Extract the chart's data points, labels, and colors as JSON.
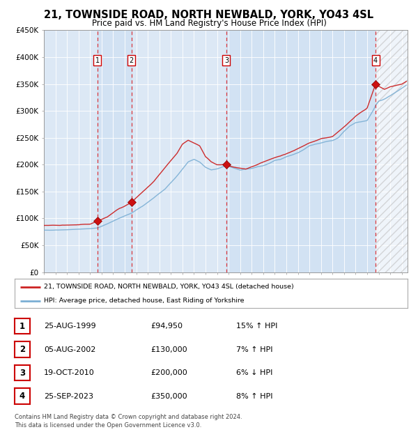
{
  "title": "21, TOWNSIDE ROAD, NORTH NEWBALD, YORK, YO43 4SL",
  "subtitle": "Price paid vs. HM Land Registry's House Price Index (HPI)",
  "plot_bg_color": "#dce8f5",
  "ylim": [
    0,
    450000
  ],
  "yticks": [
    0,
    50000,
    100000,
    150000,
    200000,
    250000,
    300000,
    350000,
    400000,
    450000
  ],
  "xstart": 1995.0,
  "xend": 2026.5,
  "sale_dates": [
    1999.646,
    2002.594,
    2010.804,
    2023.731
  ],
  "sale_prices": [
    94950,
    130000,
    200000,
    350000
  ],
  "sale_labels": [
    "1",
    "2",
    "3",
    "4"
  ],
  "sale_color": "#cc0000",
  "hpi_line_color": "#7bafd4",
  "price_line_color": "#cc2222",
  "legend_label_price": "21, TOWNSIDE ROAD, NORTH NEWBALD, YORK, YO43 4SL (detached house)",
  "legend_label_hpi": "HPI: Average price, detached house, East Riding of Yorkshire",
  "table_rows": [
    [
      "1",
      "25-AUG-1999",
      "£94,950",
      "15% ↑ HPI"
    ],
    [
      "2",
      "05-AUG-2002",
      "£130,000",
      "7% ↑ HPI"
    ],
    [
      "3",
      "19-OCT-2010",
      "£200,000",
      "6% ↓ HPI"
    ],
    [
      "4",
      "25-SEP-2023",
      "£350,000",
      "8% ↑ HPI"
    ]
  ],
  "footer": "Contains HM Land Registry data © Crown copyright and database right 2024.\nThis data is licensed under the Open Government Licence v3.0.",
  "hpi_key_x": [
    1995.0,
    1996.0,
    1997.0,
    1998.0,
    1999.0,
    1999.646,
    2000.5,
    2001.5,
    2002.594,
    2003.5,
    2004.5,
    2005.5,
    2006.5,
    2007.5,
    2008.0,
    2008.5,
    2009.0,
    2009.5,
    2010.0,
    2010.5,
    2010.804,
    2011.0,
    2011.5,
    2012.0,
    2012.5,
    2013.0,
    2013.5,
    2014.0,
    2014.5,
    2015.0,
    2015.5,
    2016.0,
    2016.5,
    2017.0,
    2017.5,
    2018.0,
    2018.5,
    2019.0,
    2019.5,
    2020.0,
    2020.5,
    2021.0,
    2021.5,
    2022.0,
    2022.5,
    2023.0,
    2023.5,
    2023.731,
    2024.0,
    2024.5,
    2025.0,
    2025.5,
    2026.0,
    2026.4
  ],
  "hpi_key_y": [
    78000,
    78500,
    79000,
    80000,
    81000,
    82000,
    90000,
    100000,
    110000,
    122000,
    138000,
    155000,
    178000,
    205000,
    210000,
    205000,
    195000,
    190000,
    192000,
    196000,
    198000,
    197000,
    193000,
    190000,
    192000,
    193000,
    196000,
    198000,
    202000,
    208000,
    210000,
    215000,
    218000,
    222000,
    228000,
    235000,
    238000,
    240000,
    243000,
    245000,
    250000,
    262000,
    272000,
    278000,
    280000,
    282000,
    300000,
    310000,
    318000,
    322000,
    328000,
    335000,
    342000,
    348000
  ],
  "price_key_x": [
    1995.0,
    1996.0,
    1997.0,
    1998.0,
    1999.0,
    1999.646,
    2000.5,
    2001.5,
    2002.0,
    2002.594,
    2003.5,
    2004.5,
    2005.5,
    2006.5,
    2007.0,
    2007.5,
    2008.0,
    2008.5,
    2009.0,
    2009.5,
    2010.0,
    2010.804,
    2011.0,
    2011.5,
    2012.0,
    2012.5,
    2013.0,
    2013.5,
    2014.0,
    2015.0,
    2016.0,
    2017.0,
    2018.0,
    2019.0,
    2020.0,
    2021.0,
    2022.0,
    2023.0,
    2023.731,
    2024.0,
    2024.5,
    2025.0,
    2026.0,
    2026.4
  ],
  "price_key_y": [
    87000,
    87000,
    87500,
    88000,
    89000,
    94950,
    103000,
    118000,
    123000,
    130000,
    148000,
    168000,
    195000,
    220000,
    238000,
    245000,
    240000,
    235000,
    215000,
    205000,
    200000,
    200000,
    198000,
    195000,
    193000,
    192000,
    196000,
    200000,
    205000,
    213000,
    220000,
    230000,
    240000,
    248000,
    252000,
    270000,
    290000,
    305000,
    350000,
    346000,
    340000,
    345000,
    350000,
    355000
  ]
}
